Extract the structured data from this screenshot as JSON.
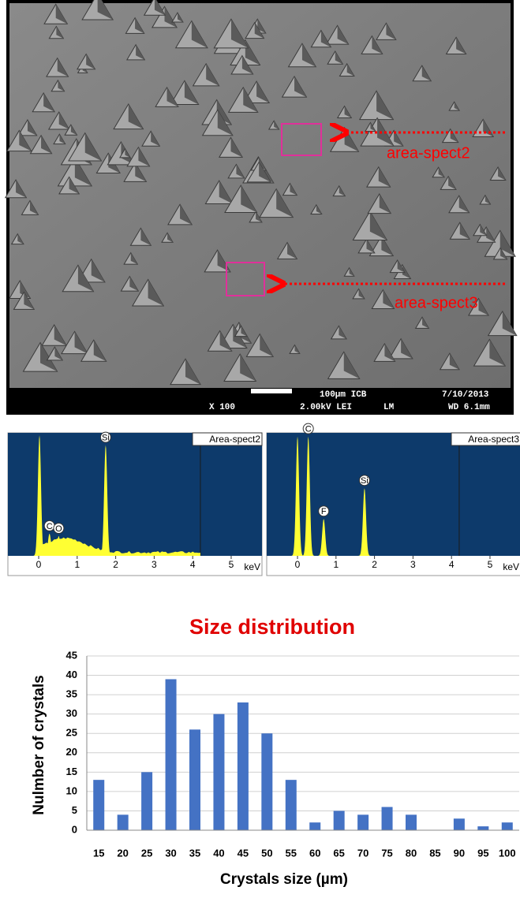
{
  "sem_image": {
    "labels": [
      "area-spect2",
      "area-spect3"
    ],
    "scale_bar": "100µm ICB",
    "date": "7/10/2013",
    "magnification": "X 100",
    "voltage": "2.00kV LEI",
    "mode": "LM",
    "working_distance": "WD 6.1mm"
  },
  "chart_data": [
    {
      "type": "spectrum",
      "title": "Area-spect2",
      "xlabel": "keV",
      "xlim": [
        -0.8,
        5.8
      ],
      "xticks": [
        0,
        1,
        2,
        3,
        4,
        5
      ],
      "color": "#ffff33",
      "peaks": [
        {
          "label": null,
          "x": 0.02,
          "height": 98
        },
        {
          "label": "C",
          "x": 0.28,
          "height": 18
        },
        {
          "label": "O",
          "x": 0.52,
          "height": 16
        },
        {
          "label": "Si",
          "x": 1.74,
          "height": 90
        }
      ]
    },
    {
      "type": "spectrum",
      "title": "Area-spect3",
      "xlabel": "keV",
      "xlim": [
        -0.8,
        5.8
      ],
      "xticks": [
        0,
        1,
        2,
        3,
        4,
        5
      ],
      "color": "#ffff33",
      "peaks": [
        {
          "label": null,
          "x": 0.0,
          "height": 97
        },
        {
          "label": "C",
          "x": 0.28,
          "height": 97
        },
        {
          "label": "F",
          "x": 0.68,
          "height": 30
        },
        {
          "label": "Si",
          "x": 1.74,
          "height": 55
        }
      ]
    },
    {
      "type": "bar",
      "title": "Size distribution",
      "xlabel": "Crystals size (µm)",
      "ylabel": "Nulmber of crystals",
      "categories": [
        "15",
        "20",
        "25",
        "30",
        "35",
        "40",
        "45",
        "50",
        "55",
        "60",
        "65",
        "70",
        "75",
        "80",
        "85",
        "90",
        "95",
        "100"
      ],
      "values": [
        13,
        4,
        15,
        39,
        26,
        30,
        33,
        25,
        13,
        2,
        5,
        4,
        6,
        4,
        0,
        3,
        1,
        2
      ],
      "color": "#4472c4",
      "ylim": [
        0,
        45
      ],
      "yticks": [
        0,
        5,
        10,
        15,
        20,
        25,
        30,
        35,
        40,
        45
      ],
      "grid": true
    }
  ]
}
